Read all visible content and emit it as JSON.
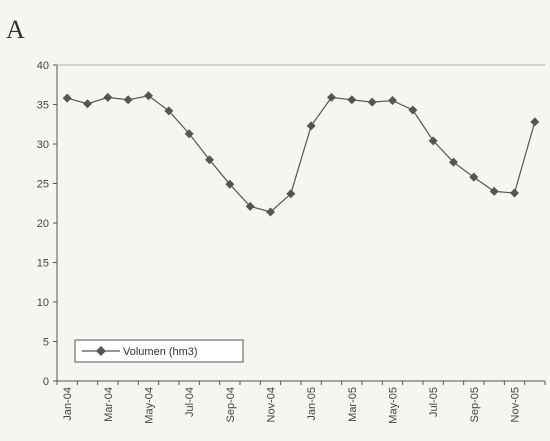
{
  "panel_label": "A",
  "chart_data": {
    "type": "line",
    "title": "",
    "xlabel": "",
    "ylabel": "",
    "ylim": [
      0,
      40
    ],
    "yticks": [
      0,
      5,
      10,
      15,
      20,
      25,
      30,
      35,
      40
    ],
    "x": [
      "Jan-04",
      "Feb-04",
      "Mar-04",
      "Apr-04",
      "May-04",
      "Jun-04",
      "Jul-04",
      "Aug-04",
      "Sep-04",
      "Oct-04",
      "Nov-04",
      "Dec-04",
      "Jan-05",
      "Feb-05",
      "Mar-05",
      "Apr-05",
      "May-05",
      "Jun-05",
      "Jul-05",
      "Aug-05",
      "Sep-05",
      "Oct-05",
      "Nov-05",
      "Dec-05"
    ],
    "xtick_labels": [
      "Jan-04",
      "Mar-04",
      "May-04",
      "Jul-04",
      "Sep-04",
      "Nov-04",
      "Jan-05",
      "Mar-05",
      "May-05",
      "Jul-05",
      "Sep-05",
      "Nov-05"
    ],
    "series": [
      {
        "name": "Volumen (hm3)",
        "values": [
          35.8,
          35.1,
          35.9,
          35.6,
          36.1,
          34.2,
          31.3,
          28.0,
          24.9,
          22.1,
          21.4,
          23.7,
          32.3,
          35.9,
          35.6,
          35.3,
          35.5,
          34.3,
          30.4,
          27.7,
          25.8,
          24.0,
          23.8,
          32.8
        ],
        "color": "#555555",
        "marker": "diamond"
      }
    ],
    "grid": false,
    "legend": "bottom-left"
  }
}
